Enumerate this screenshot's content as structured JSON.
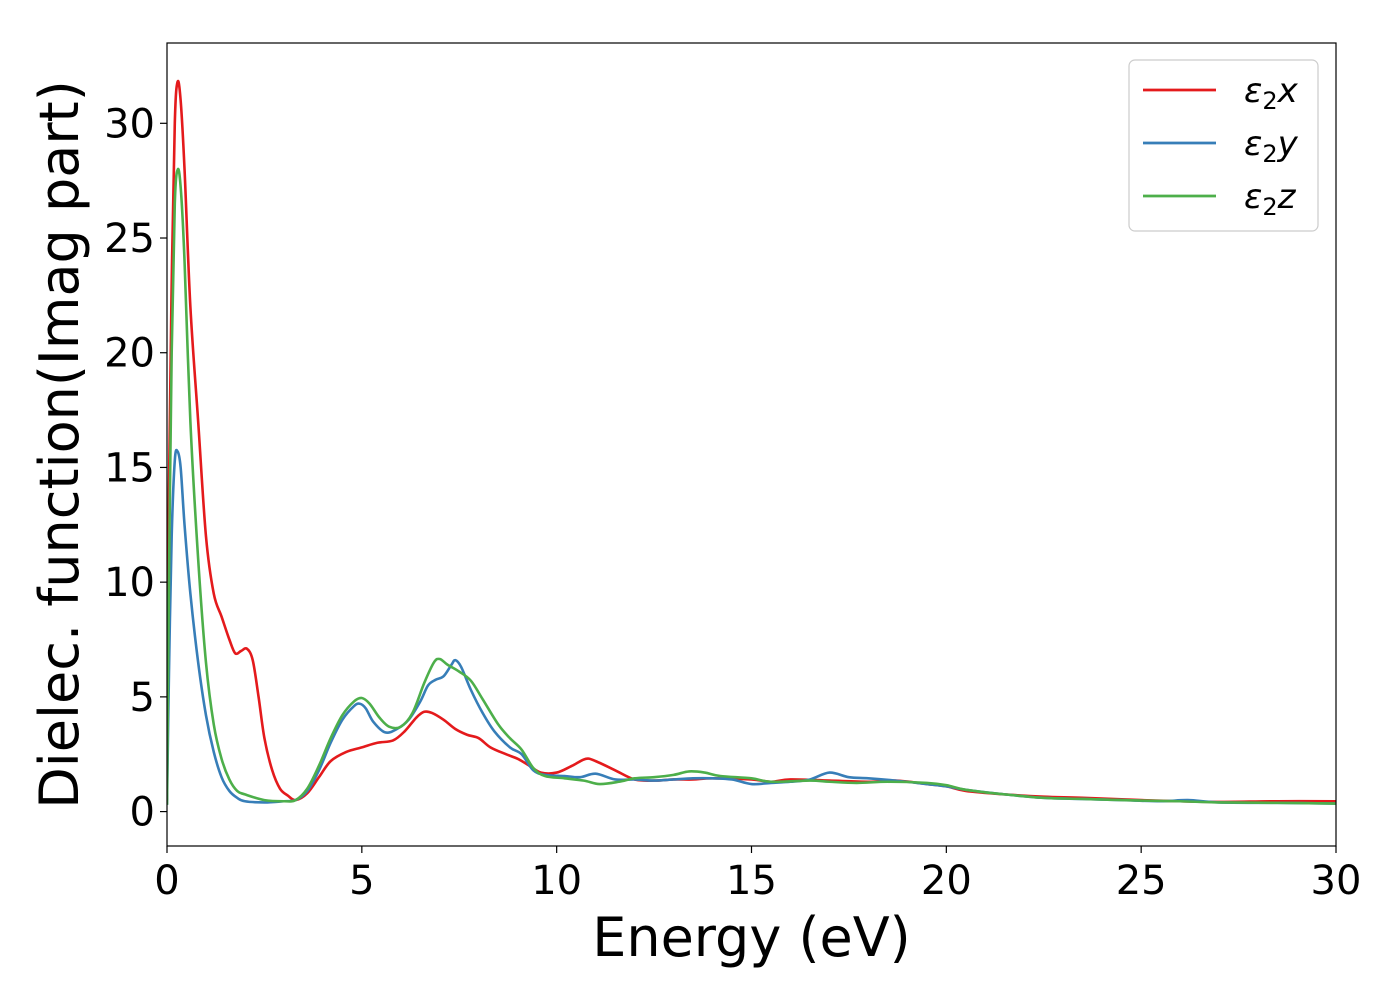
{
  "chart_data": {
    "type": "line",
    "title": "",
    "xlabel": "Energy (eV)",
    "ylabel": "Dielec. function(Imag part)",
    "xlim": [
      0,
      30
    ],
    "ylim": [
      -1.5,
      33.5
    ],
    "xticks": [
      0,
      5,
      10,
      15,
      20,
      25,
      30
    ],
    "yticks": [
      0,
      5,
      10,
      15,
      20,
      25,
      30
    ],
    "grid": false,
    "legend_position": "top-right",
    "series": [
      {
        "name": "ε₂x",
        "legend": {
          "main": "ε",
          "sub": "2",
          "var": "x"
        },
        "color": "#e41a1c",
        "points": [
          [
            0.0,
            0.5
          ],
          [
            0.05,
            14.0
          ],
          [
            0.12,
            23.0
          ],
          [
            0.2,
            30.0
          ],
          [
            0.27,
            31.8
          ],
          [
            0.35,
            31.0
          ],
          [
            0.45,
            28.0
          ],
          [
            0.6,
            22.0
          ],
          [
            0.8,
            17.0
          ],
          [
            1.0,
            12.0
          ],
          [
            1.2,
            9.5
          ],
          [
            1.4,
            8.5
          ],
          [
            1.6,
            7.5
          ],
          [
            1.75,
            6.9
          ],
          [
            1.9,
            7.0
          ],
          [
            2.05,
            7.1
          ],
          [
            2.2,
            6.6
          ],
          [
            2.35,
            5.0
          ],
          [
            2.5,
            3.2
          ],
          [
            2.7,
            1.8
          ],
          [
            2.9,
            1.0
          ],
          [
            3.1,
            0.7
          ],
          [
            3.3,
            0.5
          ],
          [
            3.6,
            0.8
          ],
          [
            3.9,
            1.5
          ],
          [
            4.2,
            2.2
          ],
          [
            4.6,
            2.6
          ],
          [
            5.0,
            2.8
          ],
          [
            5.4,
            3.0
          ],
          [
            5.8,
            3.1
          ],
          [
            6.1,
            3.5
          ],
          [
            6.4,
            4.1
          ],
          [
            6.6,
            4.35
          ],
          [
            6.8,
            4.3
          ],
          [
            7.1,
            4.0
          ],
          [
            7.4,
            3.6
          ],
          [
            7.7,
            3.35
          ],
          [
            8.0,
            3.2
          ],
          [
            8.3,
            2.8
          ],
          [
            8.7,
            2.5
          ],
          [
            9.0,
            2.3
          ],
          [
            9.3,
            2.0
          ],
          [
            9.6,
            1.7
          ],
          [
            10.0,
            1.7
          ],
          [
            10.4,
            2.0
          ],
          [
            10.75,
            2.3
          ],
          [
            11.0,
            2.2
          ],
          [
            11.5,
            1.8
          ],
          [
            12.0,
            1.4
          ],
          [
            12.5,
            1.35
          ],
          [
            13.0,
            1.4
          ],
          [
            13.5,
            1.4
          ],
          [
            14.0,
            1.45
          ],
          [
            15.0,
            1.4
          ],
          [
            15.5,
            1.3
          ],
          [
            16.0,
            1.4
          ],
          [
            17.0,
            1.35
          ],
          [
            18.0,
            1.3
          ],
          [
            18.7,
            1.35
          ],
          [
            19.5,
            1.2
          ],
          [
            20.0,
            1.1
          ],
          [
            20.5,
            0.9
          ],
          [
            21.5,
            0.75
          ],
          [
            22.5,
            0.65
          ],
          [
            23.5,
            0.6
          ],
          [
            25.0,
            0.5
          ],
          [
            26.0,
            0.45
          ],
          [
            27.0,
            0.42
          ],
          [
            28.5,
            0.45
          ],
          [
            30.0,
            0.45
          ]
        ]
      },
      {
        "name": "ε₂y",
        "legend": {
          "main": "ε",
          "sub": "2",
          "var": "y"
        },
        "color": "#377eb8",
        "points": [
          [
            0.0,
            0.3
          ],
          [
            0.05,
            6.0
          ],
          [
            0.12,
            12.0
          ],
          [
            0.2,
            15.3
          ],
          [
            0.27,
            15.7
          ],
          [
            0.35,
            15.0
          ],
          [
            0.45,
            12.5
          ],
          [
            0.6,
            9.5
          ],
          [
            0.8,
            6.5
          ],
          [
            1.0,
            4.2
          ],
          [
            1.2,
            2.6
          ],
          [
            1.4,
            1.5
          ],
          [
            1.6,
            0.9
          ],
          [
            1.8,
            0.6
          ],
          [
            2.0,
            0.45
          ],
          [
            2.5,
            0.4
          ],
          [
            3.0,
            0.45
          ],
          [
            3.3,
            0.5
          ],
          [
            3.6,
            0.9
          ],
          [
            3.9,
            1.8
          ],
          [
            4.2,
            3.0
          ],
          [
            4.5,
            4.0
          ],
          [
            4.8,
            4.6
          ],
          [
            4.95,
            4.7
          ],
          [
            5.1,
            4.5
          ],
          [
            5.3,
            3.9
          ],
          [
            5.6,
            3.45
          ],
          [
            5.9,
            3.6
          ],
          [
            6.2,
            4.0
          ],
          [
            6.5,
            4.8
          ],
          [
            6.7,
            5.5
          ],
          [
            6.9,
            5.75
          ],
          [
            7.1,
            5.9
          ],
          [
            7.3,
            6.4
          ],
          [
            7.4,
            6.6
          ],
          [
            7.55,
            6.3
          ],
          [
            7.8,
            5.3
          ],
          [
            8.1,
            4.3
          ],
          [
            8.4,
            3.5
          ],
          [
            8.8,
            2.8
          ],
          [
            9.1,
            2.5
          ],
          [
            9.4,
            1.8
          ],
          [
            9.7,
            1.6
          ],
          [
            10.2,
            1.55
          ],
          [
            10.6,
            1.5
          ],
          [
            11.0,
            1.65
          ],
          [
            11.5,
            1.4
          ],
          [
            12.0,
            1.4
          ],
          [
            12.5,
            1.35
          ],
          [
            13.0,
            1.4
          ],
          [
            13.5,
            1.45
          ],
          [
            14.0,
            1.45
          ],
          [
            14.5,
            1.4
          ],
          [
            15.0,
            1.2
          ],
          [
            15.5,
            1.25
          ],
          [
            16.0,
            1.3
          ],
          [
            16.5,
            1.4
          ],
          [
            17.0,
            1.7
          ],
          [
            17.5,
            1.5
          ],
          [
            18.0,
            1.45
          ],
          [
            18.7,
            1.35
          ],
          [
            19.5,
            1.2
          ],
          [
            20.0,
            1.1
          ],
          [
            20.5,
            0.95
          ],
          [
            21.5,
            0.75
          ],
          [
            22.5,
            0.6
          ],
          [
            23.5,
            0.55
          ],
          [
            24.5,
            0.5
          ],
          [
            25.5,
            0.45
          ],
          [
            26.2,
            0.5
          ],
          [
            27.0,
            0.4
          ],
          [
            28.5,
            0.38
          ],
          [
            30.0,
            0.35
          ]
        ]
      },
      {
        "name": "ε₂z",
        "legend": {
          "main": "ε",
          "sub": "2",
          "var": "z"
        },
        "color": "#4daf4a",
        "points": [
          [
            0.0,
            0.3
          ],
          [
            0.05,
            10.0
          ],
          [
            0.12,
            20.0
          ],
          [
            0.2,
            26.5
          ],
          [
            0.28,
            28.0
          ],
          [
            0.36,
            27.0
          ],
          [
            0.45,
            24.0
          ],
          [
            0.6,
            17.0
          ],
          [
            0.8,
            11.0
          ],
          [
            1.0,
            6.5
          ],
          [
            1.2,
            3.8
          ],
          [
            1.4,
            2.3
          ],
          [
            1.6,
            1.4
          ],
          [
            1.8,
            0.9
          ],
          [
            2.0,
            0.75
          ],
          [
            2.5,
            0.5
          ],
          [
            3.0,
            0.45
          ],
          [
            3.3,
            0.5
          ],
          [
            3.6,
            1.0
          ],
          [
            3.9,
            2.0
          ],
          [
            4.2,
            3.2
          ],
          [
            4.5,
            4.2
          ],
          [
            4.8,
            4.8
          ],
          [
            5.0,
            4.95
          ],
          [
            5.2,
            4.7
          ],
          [
            5.45,
            4.1
          ],
          [
            5.7,
            3.7
          ],
          [
            6.0,
            3.7
          ],
          [
            6.3,
            4.3
          ],
          [
            6.6,
            5.6
          ],
          [
            6.85,
            6.5
          ],
          [
            7.0,
            6.65
          ],
          [
            7.2,
            6.4
          ],
          [
            7.5,
            6.1
          ],
          [
            7.8,
            5.7
          ],
          [
            8.1,
            4.9
          ],
          [
            8.5,
            3.8
          ],
          [
            8.8,
            3.2
          ],
          [
            9.1,
            2.7
          ],
          [
            9.4,
            1.9
          ],
          [
            9.7,
            1.55
          ],
          [
            10.2,
            1.45
          ],
          [
            10.7,
            1.35
          ],
          [
            11.1,
            1.2
          ],
          [
            11.6,
            1.3
          ],
          [
            12.0,
            1.45
          ],
          [
            12.5,
            1.5
          ],
          [
            13.0,
            1.6
          ],
          [
            13.4,
            1.75
          ],
          [
            13.8,
            1.7
          ],
          [
            14.2,
            1.55
          ],
          [
            15.0,
            1.45
          ],
          [
            15.5,
            1.3
          ],
          [
            16.5,
            1.35
          ],
          [
            17.0,
            1.3
          ],
          [
            17.7,
            1.25
          ],
          [
            18.5,
            1.3
          ],
          [
            19.5,
            1.25
          ],
          [
            20.0,
            1.15
          ],
          [
            20.5,
            0.95
          ],
          [
            21.5,
            0.75
          ],
          [
            22.5,
            0.6
          ],
          [
            23.5,
            0.55
          ],
          [
            25.0,
            0.48
          ],
          [
            26.0,
            0.45
          ],
          [
            27.0,
            0.4
          ],
          [
            28.5,
            0.38
          ],
          [
            30.0,
            0.35
          ]
        ]
      }
    ]
  }
}
